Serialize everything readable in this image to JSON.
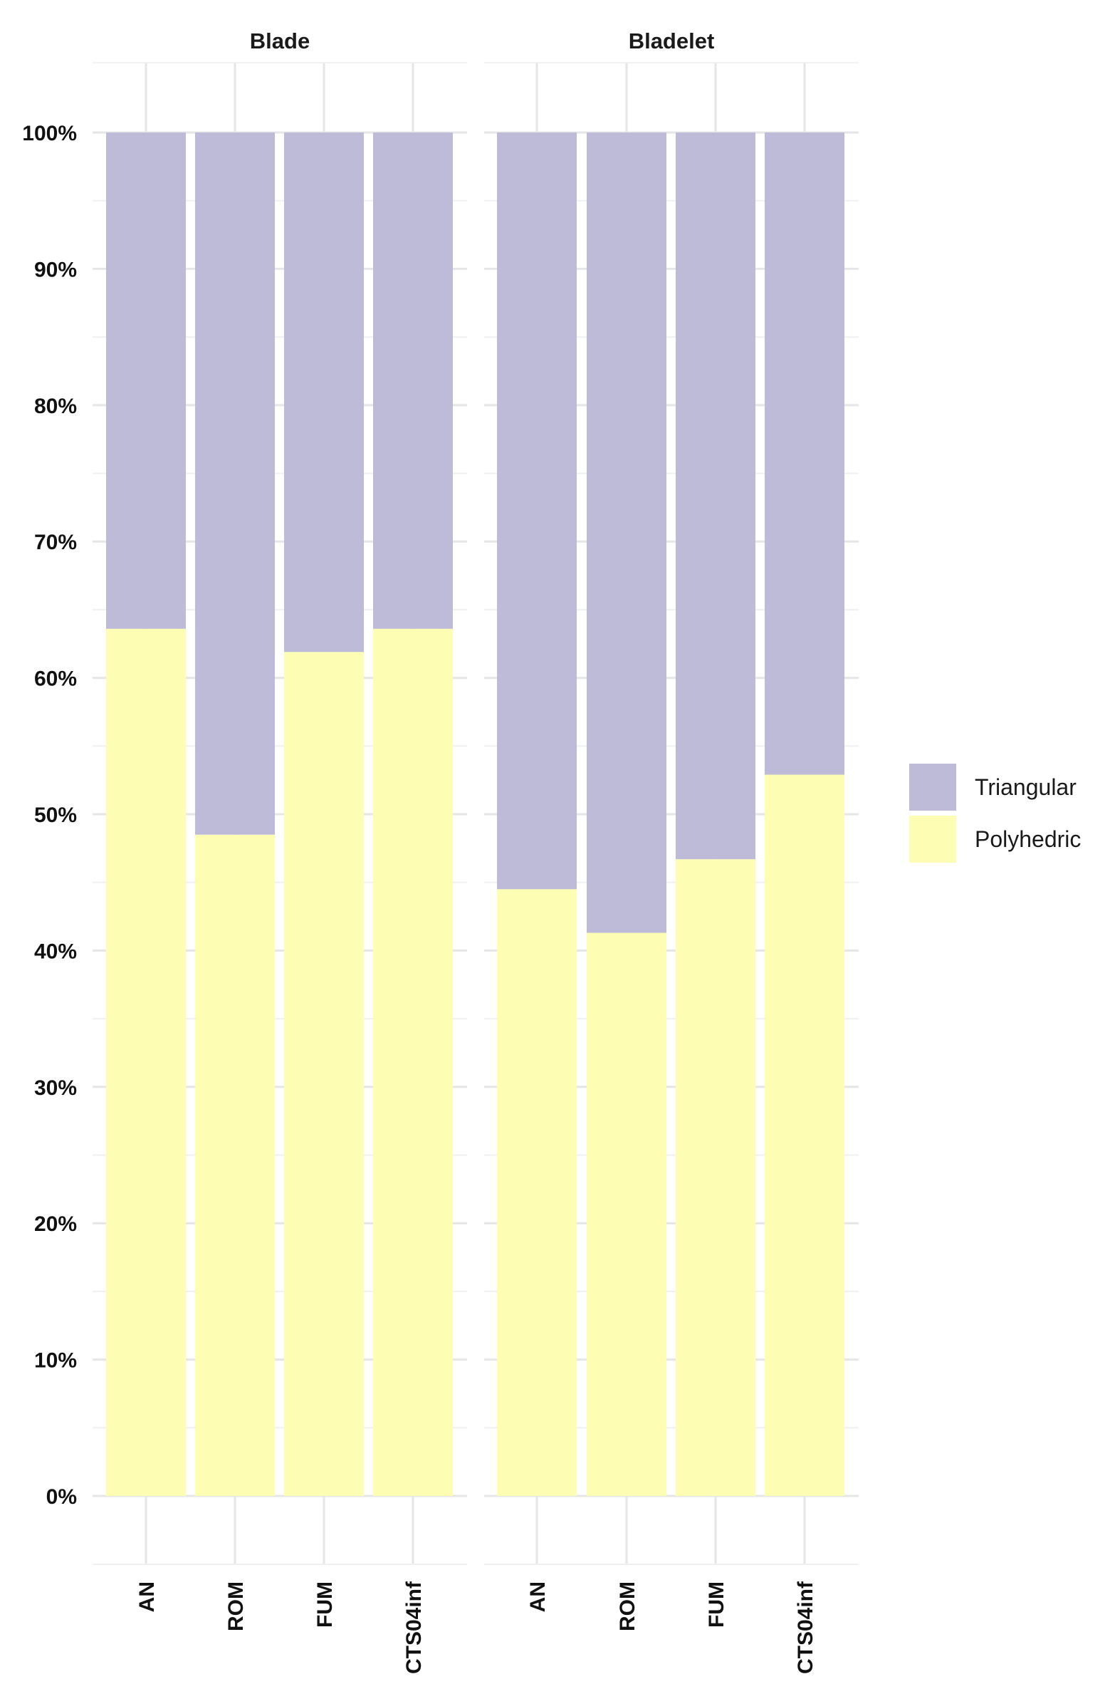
{
  "chart_data": {
    "type": "bar",
    "stacked": true,
    "percent": true,
    "title": "",
    "xlabel": "",
    "ylabel": "",
    "ylim": [
      0,
      100
    ],
    "y_ticks": [
      "0%",
      "10%",
      "20%",
      "30%",
      "40%",
      "50%",
      "60%",
      "70%",
      "80%",
      "90%",
      "100%"
    ],
    "grid": true,
    "legend_position": "right",
    "categories": [
      "AN",
      "ROM",
      "FUM",
      "CTS04inf"
    ],
    "series": [
      {
        "name": "Polyhedric",
        "color": "#fdfdb4"
      },
      {
        "name": "Triangular",
        "color": "#bebbd9"
      }
    ],
    "legend_order": [
      "Triangular",
      "Polyhedric"
    ],
    "panels": [
      {
        "label": "Blade",
        "values": {
          "Polyhedric": [
            63.6,
            48.5,
            61.9,
            63.6
          ],
          "Triangular": [
            36.4,
            51.5,
            38.1,
            36.4
          ]
        }
      },
      {
        "label": "Bladelet",
        "values": {
          "Polyhedric": [
            44.5,
            41.3,
            46.7,
            52.9
          ],
          "Triangular": [
            55.5,
            58.7,
            53.3,
            47.1
          ]
        }
      }
    ]
  }
}
